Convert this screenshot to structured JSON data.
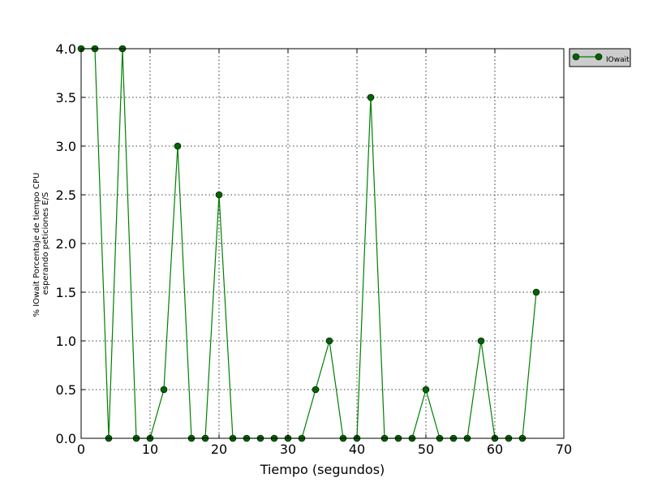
{
  "chart_data": {
    "type": "line",
    "title": "",
    "xlabel": "Tiempo (segundos)",
    "ylabel_lines": [
      "% IOwait Porcentaje de tiempo CPU",
      "esperando peticiones E/S"
    ],
    "xlim": [
      0,
      70
    ],
    "ylim": [
      0,
      4
    ],
    "x_ticks": [
      0,
      10,
      20,
      30,
      40,
      50,
      60,
      70
    ],
    "y_ticks": [
      0.0,
      0.5,
      1.0,
      1.5,
      2.0,
      2.5,
      3.0,
      3.5,
      4.0
    ],
    "x_tick_labels": [
      "0",
      "10",
      "20",
      "30",
      "40",
      "50",
      "60",
      "70"
    ],
    "y_tick_labels": [
      "0.0",
      "0.5",
      "1.0",
      "1.5",
      "2.0",
      "2.5",
      "3.0",
      "3.5",
      "4.0"
    ],
    "grid": true,
    "legend_position": "outside-top-right",
    "series": [
      {
        "name": "IOwait",
        "color": "#008000",
        "marker_color": "#006400",
        "marker": "circle",
        "x": [
          0,
          2,
          4,
          6,
          8,
          10,
          12,
          14,
          16,
          18,
          20,
          22,
          24,
          26,
          28,
          30,
          32,
          34,
          36,
          38,
          40,
          42,
          44,
          46,
          48,
          50,
          52,
          54,
          56,
          58,
          60,
          62,
          64,
          66
        ],
        "y": [
          4.0,
          4.0,
          0.0,
          4.0,
          0.0,
          0.0,
          0.5,
          3.0,
          0.0,
          0.0,
          2.5,
          0.0,
          0.0,
          0.0,
          0.0,
          0.0,
          0.0,
          0.5,
          1.0,
          0.0,
          0.0,
          3.5,
          0.0,
          0.0,
          0.0,
          0.5,
          0.0,
          0.0,
          0.0,
          1.0,
          0.0,
          0.0,
          0.0,
          1.5
        ]
      }
    ]
  }
}
